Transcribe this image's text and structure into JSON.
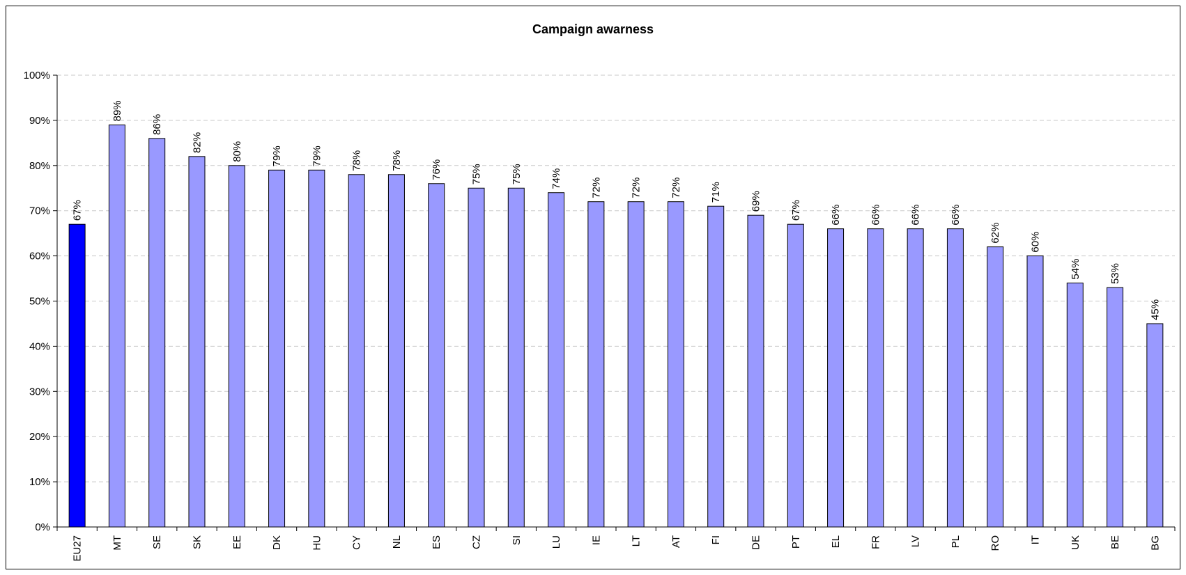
{
  "chart_data": {
    "type": "bar",
    "title": "Campaign awarness",
    "xlabel": "",
    "ylabel": "",
    "ylim": [
      0,
      100
    ],
    "yticks": [
      0,
      10,
      20,
      30,
      40,
      50,
      60,
      70,
      80,
      90,
      100
    ],
    "ytick_suffix": "%",
    "grid": "horizontal-dashed",
    "categories": [
      "EU27",
      "MT",
      "SE",
      "SK",
      "EE",
      "DK",
      "HU",
      "CY",
      "NL",
      "ES",
      "CZ",
      "SI",
      "LU",
      "IE",
      "LT",
      "AT",
      "FI",
      "DE",
      "PT",
      "EL",
      "FR",
      "LV",
      "PL",
      "RO",
      "IT",
      "UK",
      "BE",
      "BG"
    ],
    "values": [
      67,
      89,
      86,
      82,
      80,
      79,
      79,
      78,
      78,
      76,
      75,
      75,
      74,
      72,
      72,
      72,
      71,
      69,
      67,
      66,
      66,
      66,
      66,
      62,
      60,
      54,
      53,
      45
    ],
    "highlight_category": "EU27",
    "colors": {
      "highlight": "#0000ff",
      "bar": "#9999ff",
      "grid": "#c8c8c8",
      "axis": "#000000"
    }
  }
}
